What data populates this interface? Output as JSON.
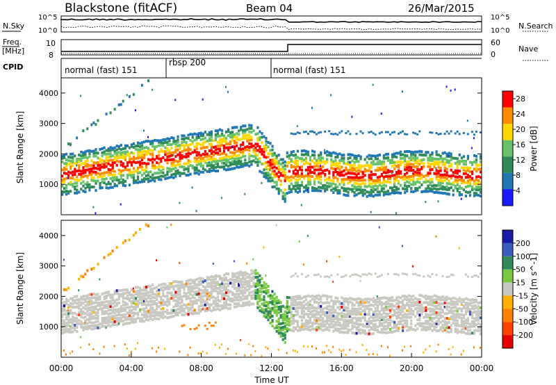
{
  "header": {
    "title": "Blackstone (fitACF)",
    "beam": "Beam 04",
    "date": "26/Mar/2015"
  },
  "noise_panel": {
    "left_label": "N.Sky",
    "right_label": "N.Search",
    "left_ticks": [
      "10^5",
      "10^0"
    ],
    "right_ticks": [
      "10^5",
      "10^0"
    ]
  },
  "freq_panel": {
    "left_label_top": "Freq.",
    "left_label_bottom": "[MHz]",
    "left_ticks": [
      "10",
      "8"
    ],
    "right_label": "Nave",
    "right_ticks": [
      "60",
      "0"
    ]
  },
  "cpid": {
    "label": "CPID",
    "segments": [
      {
        "label": "normal (fast) 151",
        "start": "00:00",
        "end": "06:00"
      },
      {
        "label": "rbsp 200",
        "start": "06:00",
        "end": "12:00"
      },
      {
        "label": "normal (fast) 151",
        "start": "12:00",
        "end": "24:00"
      }
    ]
  },
  "chart_data": [
    {
      "type": "heatmap",
      "title": "",
      "xlabel": "Time UT",
      "ylabel": "Slant Range [km]",
      "xlim": [
        0,
        24
      ],
      "ylim": [
        0,
        4500
      ],
      "y_ticks": [
        "1000",
        "2000",
        "3000",
        "4000"
      ],
      "colorbar": {
        "label": "Power [dB]",
        "ticks": [
          "4",
          "8",
          "12",
          "16",
          "20",
          "24",
          "28"
        ],
        "range": [
          0,
          30
        ],
        "colors": [
          "#1a1aff",
          "#1f77b4",
          "#2e8b57",
          "#66c266",
          "#ffd700",
          "#ff8c00",
          "#ff0000"
        ]
      },
      "features": [
        {
          "name": "main echo band",
          "start_hour": 0.0,
          "end_hour": 11.0,
          "range_km_start": 1300,
          "range_km_end": 2400
        },
        {
          "name": "descending trace",
          "start_hour": 11.0,
          "end_hour": 12.8,
          "range_km_start": 2600,
          "range_km_end": 1000
        },
        {
          "name": "post-noon band",
          "start_hour": 12.8,
          "end_hour": 24.0,
          "range_km_start": 1300,
          "range_km_end": 1500
        },
        {
          "name": "upper echoes",
          "start_hour": 13.0,
          "end_hour": 24.0,
          "range_km_start": 2600,
          "range_km_end": 2700
        }
      ]
    },
    {
      "type": "heatmap",
      "title": "",
      "xlabel": "Time UT",
      "ylabel": "Slant Range [km]",
      "xlim": [
        0,
        24
      ],
      "ylim": [
        0,
        4500
      ],
      "x_ticks": [
        "00:00",
        "04:00",
        "08:00",
        "12:00",
        "16:00",
        "20:00",
        "00:00"
      ],
      "y_ticks": [
        "1000",
        "2000",
        "3000",
        "4000"
      ],
      "colorbar": {
        "label": "Velocity [m s^-1]",
        "ticks": [
          "200",
          "100",
          "50",
          "15",
          "-15",
          "-50",
          "-100",
          "-200"
        ],
        "colors": [
          "#1a1aa8",
          "#3b5bbf",
          "#2e8b57",
          "#7ac943",
          "#c8c8c0",
          "#ffb000",
          "#ff7f00",
          "#ff4500",
          "#e60000"
        ]
      }
    }
  ]
}
